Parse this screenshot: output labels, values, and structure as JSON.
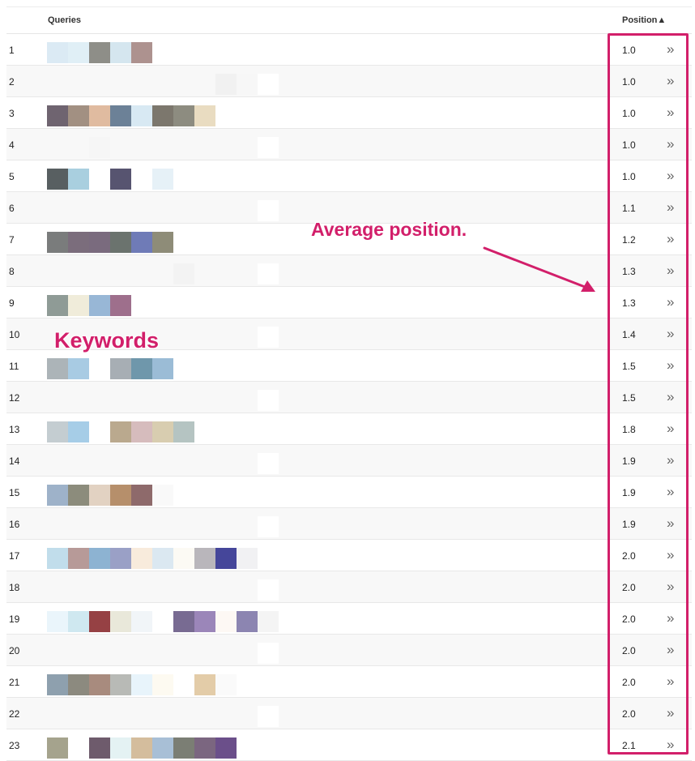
{
  "table": {
    "headers": {
      "queries": "Queries",
      "position": "Position▲"
    },
    "chevron_glyph": "»",
    "rows": [
      {
        "num": "1",
        "position": "1.0",
        "colors": [
          "#dbeaf4",
          "#e0eff6",
          "#8e8e88",
          "#d5e6ef",
          "#ad928f"
        ]
      },
      {
        "num": "2",
        "position": "1.0",
        "colors": [
          "#f8f8f8",
          "#f8f8f8",
          "#f8f8f8",
          "#f8f8f8",
          "#f8f8f8",
          "#f8f8f8",
          "#f8f8f8",
          "#f8f8f8",
          "#f1f1f1",
          "#f7f7f7",
          "#ffffff"
        ]
      },
      {
        "num": "3",
        "position": "1.0",
        "colors": [
          "#6f6470",
          "#a29082",
          "#e0bba0",
          "#6c8197",
          "#d8e9f3",
          "#7c776d",
          "#8d8c80",
          "#e9dcc1",
          "#ffffff",
          "#ffffff",
          "#ffffff"
        ]
      },
      {
        "num": "4",
        "position": "1.0",
        "colors": [
          "#f8f8f8",
          "#f8f8f8",
          "#f6f6f6",
          "#f8f8f8",
          "#f8f8f8",
          "#f8f8f8",
          "#f8f8f8",
          "#f8f8f8",
          "#f8f8f8",
          "#f8f8f8",
          "#ffffff"
        ]
      },
      {
        "num": "5",
        "position": "1.0",
        "colors": [
          "#585f61",
          "#a9cfdf",
          "#ffffff",
          "#575470",
          "#ffffff",
          "#e6f1f7",
          "#ffffff",
          "#ffffff",
          "#ffffff",
          "#ffffff",
          "#ffffff"
        ]
      },
      {
        "num": "6",
        "position": "1.1",
        "colors": [
          "#f8f8f8",
          "#f8f8f8",
          "#f8f8f8",
          "#f8f8f8",
          "#f8f8f8",
          "#f8f8f8",
          "#f8f8f8",
          "#f8f8f8",
          "#f8f8f8",
          "#f8f8f8",
          "#ffffff"
        ]
      },
      {
        "num": "7",
        "position": "1.2",
        "colors": [
          "#7a7c7c",
          "#7b6d7c",
          "#7a6b7e",
          "#6b736e",
          "#6f7bb7",
          "#8e8c78",
          "#ffffff",
          "#ffffff",
          "#ffffff",
          "#ffffff",
          "#ffffff"
        ]
      },
      {
        "num": "8",
        "position": "1.3",
        "colors": [
          "#f8f8f8",
          "#f8f8f8",
          "#f8f8f8",
          "#f8f8f8",
          "#f8f8f8",
          "#f8f8f8",
          "#f3f3f3",
          "#f8f8f8",
          "#f8f8f8",
          "#f8f8f8",
          "#ffffff"
        ]
      },
      {
        "num": "9",
        "position": "1.3",
        "colors": [
          "#8f9b96",
          "#f0ecda",
          "#98b7d6",
          "#9e6f8c",
          "#ffffff",
          "#ffffff",
          "#ffffff",
          "#ffffff",
          "#ffffff",
          "#ffffff",
          "#ffffff"
        ]
      },
      {
        "num": "10",
        "position": "1.4",
        "colors": [
          "#f8f8f8",
          "#f8f8f8",
          "#f8f8f8",
          "#f8f8f8",
          "#f8f8f8",
          "#f8f8f8",
          "#f8f8f8",
          "#f8f8f8",
          "#f8f8f8",
          "#f8f8f8",
          "#ffffff"
        ]
      },
      {
        "num": "11",
        "position": "1.5",
        "colors": [
          "#acb4b8",
          "#a8cbe3",
          "#ffffff",
          "#a7aeb4",
          "#6f97ab",
          "#9bbcd6",
          "#ffffff",
          "#ffffff",
          "#ffffff",
          "#ffffff",
          "#ffffff"
        ]
      },
      {
        "num": "12",
        "position": "1.5",
        "colors": [
          "#f8f8f8",
          "#f8f8f8",
          "#f8f8f8",
          "#f8f8f8",
          "#f8f8f8",
          "#f8f8f8",
          "#f8f8f8",
          "#f8f8f8",
          "#f8f8f8",
          "#f8f8f8",
          "#ffffff"
        ]
      },
      {
        "num": "13",
        "position": "1.8",
        "colors": [
          "#c4cdd1",
          "#a6cde7",
          "#ffffff",
          "#baa98e",
          "#d6bcbd",
          "#d8cdb0",
          "#b5c4c2",
          "#ffffff",
          "#ffffff",
          "#ffffff",
          "#ffffff"
        ]
      },
      {
        "num": "14",
        "position": "1.9",
        "colors": [
          "#f8f8f8",
          "#f8f8f8",
          "#f8f8f8",
          "#f8f8f8",
          "#f8f8f8",
          "#f8f8f8",
          "#f8f8f8",
          "#f8f8f8",
          "#f8f8f8",
          "#f8f8f8",
          "#ffffff"
        ]
      },
      {
        "num": "15",
        "position": "1.9",
        "colors": [
          "#9eb2c9",
          "#8c8c7c",
          "#e2d2c2",
          "#b68f6b",
          "#8e6a6b",
          "#f9f9f9",
          "#ffffff",
          "#ffffff",
          "#ffffff",
          "#ffffff",
          "#ffffff"
        ]
      },
      {
        "num": "16",
        "position": "1.9",
        "colors": [
          "#f8f8f8",
          "#f8f8f8",
          "#f8f8f8",
          "#f8f8f8",
          "#f8f8f8",
          "#f8f8f8",
          "#f8f8f8",
          "#f8f8f8",
          "#f8f8f8",
          "#f8f8f8",
          "#ffffff"
        ]
      },
      {
        "num": "17",
        "position": "2.0",
        "colors": [
          "#c1ddeb",
          "#b79a98",
          "#8db3d2",
          "#9aa0c6",
          "#f8ebdc",
          "#dbe8f1",
          "#fcfaf4",
          "#b9b6bb",
          "#45469a",
          "#f1f1f3",
          "#ffffff"
        ]
      },
      {
        "num": "18",
        "position": "2.0",
        "colors": [
          "#f8f8f8",
          "#f8f8f8",
          "#f8f8f8",
          "#f8f8f8",
          "#f8f8f8",
          "#f8f8f8",
          "#f8f8f8",
          "#f8f8f8",
          "#f8f8f8",
          "#f8f8f8",
          "#ffffff"
        ]
      },
      {
        "num": "19",
        "position": "2.0",
        "colors": [
          "#eaf5fb",
          "#cfe8f0",
          "#964144",
          "#e9e8da",
          "#f1f5f8",
          "#ffffff",
          "#786b92",
          "#9b86b9",
          "#fdf8f4",
          "#8c85b1",
          "#f4f4f4"
        ]
      },
      {
        "num": "20",
        "position": "2.0",
        "colors": [
          "#f8f8f8",
          "#f8f8f8",
          "#f8f8f8",
          "#f8f8f8",
          "#f8f8f8",
          "#f8f8f8",
          "#f8f8f8",
          "#f8f8f8",
          "#f8f8f8",
          "#f8f8f8",
          "#ffffff"
        ]
      },
      {
        "num": "21",
        "position": "2.0",
        "colors": [
          "#8ea0ae",
          "#8c8a7f",
          "#a88b7e",
          "#b8bab6",
          "#e8f4fb",
          "#fdfaf1",
          "#ffffff",
          "#e3cca8",
          "#fafafa",
          "#ffffff",
          "#ffffff"
        ]
      },
      {
        "num": "22",
        "position": "2.0",
        "colors": [
          "#f8f8f8",
          "#f8f8f8",
          "#f8f8f8",
          "#f8f8f8",
          "#f8f8f8",
          "#f8f8f8",
          "#f8f8f8",
          "#f8f8f8",
          "#f8f8f8",
          "#f8f8f8",
          "#ffffff"
        ]
      },
      {
        "num": "23",
        "position": "2.1",
        "colors": [
          "#a5a38d",
          "#ffffff",
          "#6e5b6c",
          "#e4f2f3",
          "#d4bd9d",
          "#a8bfd6",
          "#7b7e74",
          "#7b6680",
          "#6b4f8a",
          "#ffffff",
          "#ffffff"
        ]
      }
    ]
  },
  "annotations": {
    "average_position": "Average position.",
    "keywords": "Keywords"
  },
  "accent_color": "#d21f6a"
}
